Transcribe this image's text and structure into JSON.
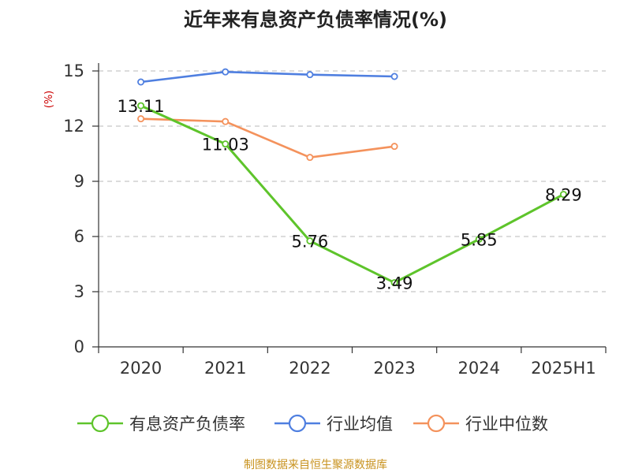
{
  "chart_data": {
    "type": "line",
    "title": "近年来有息资产负债率情况(%)",
    "xlabel": "",
    "ylabel": "(%)",
    "categories": [
      "2020",
      "2021",
      "2022",
      "2023",
      "2024",
      "2025H1"
    ],
    "ylim": [
      0,
      15
    ],
    "yticks": [
      0,
      3,
      6,
      9,
      12,
      15
    ],
    "grid": true,
    "legend_position": "bottom",
    "series": [
      {
        "name": "有息资产负债率",
        "color": "#5ec42b",
        "values": [
          13.11,
          11.03,
          5.76,
          3.49,
          5.85,
          8.29
        ],
        "labels": [
          "13.11",
          "11.03",
          "5.76",
          "3.49",
          "5.85",
          "8.29"
        ]
      },
      {
        "name": "行业均值",
        "color": "#4f7fe0",
        "values": [
          14.4,
          14.95,
          14.8,
          14.7,
          null,
          null
        ]
      },
      {
        "name": "行业中位数",
        "color": "#f4925c",
        "values": [
          12.4,
          12.25,
          10.3,
          10.9,
          null,
          null
        ]
      }
    ]
  },
  "source": {
    "text": "制图数据来自恒生聚源数据库",
    "color": "#c8921e"
  },
  "ylabel_color": "#cc0000"
}
